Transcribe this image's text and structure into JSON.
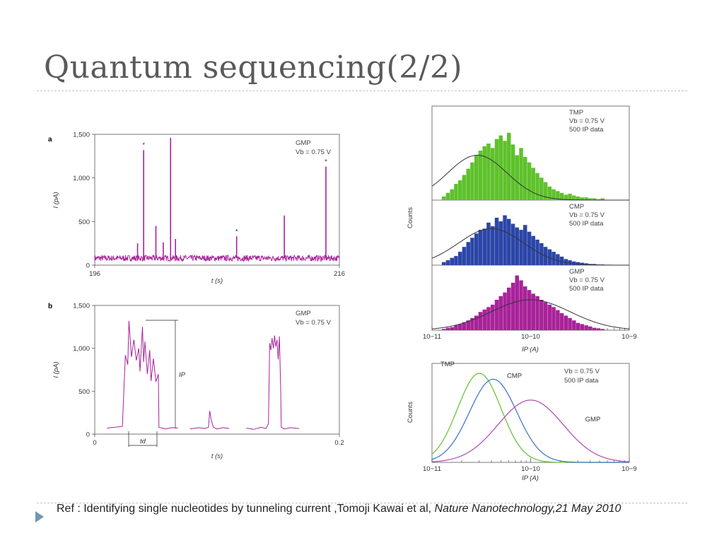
{
  "slide": {
    "title": "Quantum sequencing(2/2)",
    "reference_prefix": "Ref : Identifying single nucleotides by tunneling current ,Tomoji Kawai et al, ",
    "reference_italic": "Nature Nanotechnology,21 May 2010",
    "colors": {
      "title": "#5a5a5a",
      "rule": "#b8c4cc",
      "bullet": "#6f96b5",
      "trace": "#a8239a"
    }
  },
  "chart_data": [
    {
      "id": "a",
      "type": "line",
      "panel_label": "a",
      "annotation": [
        "GMP",
        "Vb = 0.75 V"
      ],
      "xlabel": "t (s)",
      "ylabel": "I (pA)",
      "xlim": [
        196,
        216
      ],
      "ylim": [
        0,
        1500
      ],
      "xtick_labels": [
        "196",
        "216"
      ],
      "ytick_labels": [
        "0",
        "500",
        "1,000",
        "1,500"
      ],
      "baseline": 80,
      "spikes": [
        {
          "x": 199.5,
          "y": 250
        },
        {
          "x": 200.0,
          "y": 1320,
          "star": true
        },
        {
          "x": 201.0,
          "y": 450
        },
        {
          "x": 201.6,
          "y": 260
        },
        {
          "x": 202.2,
          "y": 1460
        },
        {
          "x": 202.6,
          "y": 300
        },
        {
          "x": 207.6,
          "y": 330,
          "star": true
        },
        {
          "x": 211.5,
          "y": 570
        },
        {
          "x": 214.9,
          "y": 1130,
          "star": true
        }
      ]
    },
    {
      "id": "b",
      "type": "line",
      "panel_label": "b",
      "annotation": [
        "GMP",
        "Vb = 0.75 V"
      ],
      "xlabel": "t (s)",
      "ylabel": "I (pA)",
      "xlim": [
        0,
        0.2
      ],
      "ylim": [
        0,
        1500
      ],
      "xtick_labels": [
        "0",
        "0.2"
      ],
      "ytick_labels": [
        "0",
        "500",
        "1,000",
        "1,500"
      ],
      "baseline": 70,
      "segments": [
        {
          "x": [
            0.01,
            0.0226,
            0.025,
            0.027,
            0.028,
            0.03,
            0.032,
            0.034,
            0.036,
            0.037,
            0.039,
            0.04,
            0.041,
            0.043,
            0.045,
            0.046,
            0.048,
            0.05,
            0.052,
            0.0525,
            0.055,
            0.058,
            0.063,
            0.068
          ],
          "y": [
            70,
            90,
            920,
            810,
            1320,
            900,
            1100,
            860,
            1000,
            730,
            1250,
            840,
            1080,
            700,
            980,
            620,
            880,
            610,
            700,
            80,
            70,
            60,
            75,
            70
          ]
        },
        {
          "x": [
            0.078,
            0.085,
            0.09,
            0.093,
            0.094,
            0.095,
            0.097,
            0.1,
            0.105,
            0.11
          ],
          "y": [
            60,
            75,
            65,
            80,
            270,
            180,
            80,
            60,
            75,
            65
          ]
        },
        {
          "x": [
            0.124,
            0.13,
            0.136,
            0.14,
            0.142,
            0.143,
            0.144,
            0.145,
            0.146,
            0.147,
            0.148,
            0.149,
            0.15,
            0.151,
            0.152,
            0.1525,
            0.155,
            0.16,
            0.167
          ],
          "y": [
            70,
            55,
            80,
            65,
            120,
            1060,
            980,
            1120,
            1000,
            1150,
            1020,
            1100,
            870,
            1140,
            520,
            80,
            60,
            75,
            65
          ]
        }
      ],
      "ip_label": "IP",
      "td_label": "td"
    },
    {
      "id": "c",
      "type": "histogram",
      "xlabel": "IP (A)",
      "ylabel": "Counts",
      "x_log_range": [
        -11,
        -9
      ],
      "xtick_labels": [
        "10−11",
        "10−10",
        "10−9"
      ],
      "panels": [
        {
          "name": "TMP",
          "annotation": [
            "TMP",
            "Vb = 0.75 V",
            "500 IP data"
          ],
          "color": "#5fc12c",
          "peak_log": -10.54,
          "sigma": 0.3,
          "fit_peak": 0.5,
          "counts": [
            0.04,
            0.08,
            0.12,
            0.18,
            0.22,
            0.28,
            0.35,
            0.42,
            0.5,
            0.55,
            0.6,
            0.63,
            0.58,
            0.68,
            0.72,
            0.66,
            0.75,
            0.62,
            0.5,
            0.58,
            0.48,
            0.42,
            0.36,
            0.3,
            0.25,
            0.2,
            0.15,
            0.12,
            0.1,
            0.08,
            0.06,
            0.07,
            0.05,
            0.04,
            0.03,
            0.03,
            0.02,
            0.02,
            0.01,
            0.02
          ]
        },
        {
          "name": "CMP",
          "annotation": [
            "CMP",
            "Vb = 0.75 V",
            "500 IP data"
          ],
          "color": "#2c46a8",
          "peak_log": -10.4,
          "sigma": 0.33,
          "fit_peak": 0.6,
          "counts": [
            0.05,
            0.08,
            0.12,
            0.15,
            0.22,
            0.3,
            0.38,
            0.45,
            0.52,
            0.58,
            0.6,
            0.7,
            0.64,
            0.78,
            0.72,
            0.82,
            0.76,
            0.68,
            0.62,
            0.58,
            0.66,
            0.55,
            0.48,
            0.42,
            0.36,
            0.3,
            0.26,
            0.22,
            0.18,
            0.14,
            0.1,
            0.08,
            0.06,
            0.05,
            0.04,
            0.03,
            0.02,
            0.02,
            0.01,
            0.01
          ]
        },
        {
          "name": "GMP",
          "annotation": [
            "GMP",
            "Vb = 0.75 V",
            "500 IP data"
          ],
          "color": "#a8239a",
          "peak_log": -10.0,
          "sigma": 0.4,
          "fit_peak": 0.5,
          "counts": [
            0.02,
            0.04,
            0.05,
            0.08,
            0.1,
            0.13,
            0.16,
            0.2,
            0.24,
            0.3,
            0.34,
            0.38,
            0.42,
            0.5,
            0.56,
            0.62,
            0.7,
            0.78,
            0.9,
            0.82,
            0.72,
            0.66,
            0.6,
            0.56,
            0.5,
            0.46,
            0.42,
            0.38,
            0.33,
            0.28,
            0.24,
            0.2,
            0.16,
            0.12,
            0.1,
            0.08,
            0.06,
            0.04,
            0.03,
            0.02
          ]
        }
      ]
    },
    {
      "id": "d",
      "type": "line",
      "xlabel": "IP (A)",
      "ylabel": "Counts",
      "x_log_range": [
        -11,
        -9
      ],
      "xtick_labels": [
        "10−11",
        "10−10",
        "10−9"
      ],
      "annotation": [
        "Vb = 0.75 V",
        "500 IP data"
      ],
      "series": [
        {
          "name": "TMP",
          "color": "#5fc12c",
          "peak_log": -10.52,
          "sigma": 0.22,
          "amp": 0.9
        },
        {
          "name": "CMP",
          "color": "#3b6fc8",
          "peak_log": -10.38,
          "sigma": 0.24,
          "amp": 0.84
        },
        {
          "name": "GMP",
          "color": "#b04cb0",
          "peak_log": -10.0,
          "sigma": 0.33,
          "amp": 0.63
        }
      ]
    }
  ]
}
